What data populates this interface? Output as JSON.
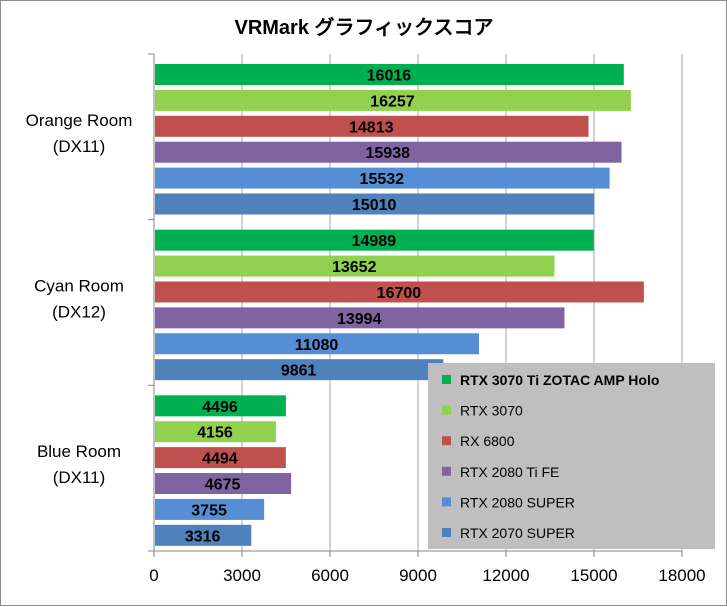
{
  "chart_data": {
    "type": "bar",
    "orientation": "horizontal",
    "title": "VRMark グラフィックスコア",
    "categories": [
      [
        "Orange Room",
        "(DX11)"
      ],
      [
        "Cyan Room",
        "(DX12)"
      ],
      [
        "Blue Room",
        "(DX11)"
      ]
    ],
    "series": [
      {
        "name": "RTX 3070 Ti ZOTAC AMP Holo",
        "color": "#00b050",
        "highlight": true,
        "values": [
          16016,
          14989,
          4496
        ]
      },
      {
        "name": "RTX 3070",
        "color": "#92d050",
        "highlight": false,
        "values": [
          16257,
          13652,
          4156
        ]
      },
      {
        "name": "RX 6800",
        "color": "#c0504d",
        "highlight": false,
        "values": [
          14813,
          16700,
          4494
        ]
      },
      {
        "name": "RTX 2080 Ti FE",
        "color": "#8064a2",
        "highlight": false,
        "values": [
          15938,
          13994,
          4675
        ]
      },
      {
        "name": "RTX 2080 SUPER",
        "color": "#558ed5",
        "highlight": false,
        "values": [
          15532,
          11080,
          3755
        ]
      },
      {
        "name": "RTX 2070 SUPER",
        "color": "#4f81bd",
        "highlight": false,
        "values": [
          15010,
          9861,
          3316
        ]
      }
    ],
    "xlim": [
      0,
      18000
    ],
    "xticks": [
      0,
      3000,
      6000,
      9000,
      12000,
      15000,
      18000
    ],
    "grid": true,
    "legend_position": "bottom-right",
    "legend_background": "#bfbfbf"
  }
}
